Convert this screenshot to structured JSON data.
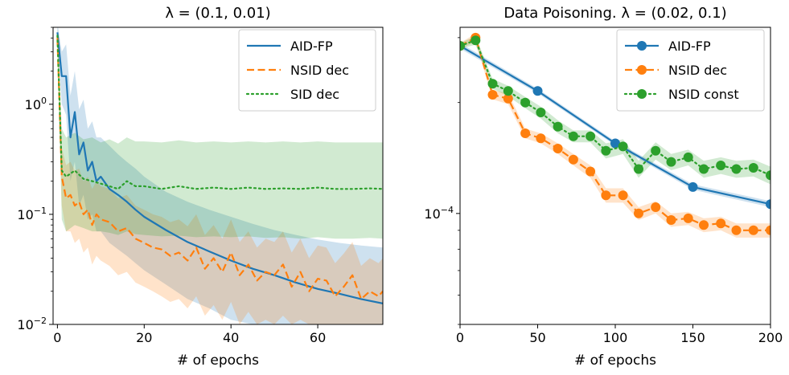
{
  "chart_data": [
    {
      "type": "line",
      "title": "λ = (0.1, 0.01)",
      "xlabel": "# of epochs",
      "ylabel": "",
      "xlim": [
        -1,
        75
      ],
      "ylim": [
        0.01,
        5.0
      ],
      "yscale": "log",
      "grid": false,
      "legend_position": "upper right",
      "xticks": [
        0,
        20,
        40,
        60
      ],
      "xtick_labels": [
        "0",
        "20",
        "40",
        "60"
      ],
      "yticks": [
        0.01,
        0.1,
        1
      ],
      "ytick_labels": [
        "10⁻²",
        "10⁻¹",
        "10⁰"
      ],
      "series": [
        {
          "name": "AID-FP",
          "style": "solid",
          "color": "#1f77b4",
          "x": [
            0,
            1,
            2,
            3,
            4,
            5,
            6,
            7,
            8,
            9,
            10,
            12,
            14,
            16,
            18,
            20,
            25,
            30,
            35,
            40,
            45,
            50,
            55,
            60,
            65,
            70,
            75
          ],
          "y": [
            4.5,
            1.8,
            1.8,
            0.5,
            0.85,
            0.35,
            0.45,
            0.25,
            0.3,
            0.2,
            0.22,
            0.17,
            0.15,
            0.13,
            0.11,
            0.095,
            0.072,
            0.056,
            0.046,
            0.038,
            0.032,
            0.028,
            0.024,
            0.021,
            0.019,
            0.017,
            0.0155
          ],
          "band_lower": [
            3.5,
            1.0,
            0.8,
            0.2,
            0.3,
            0.12,
            0.15,
            0.09,
            0.1,
            0.07,
            0.07,
            0.055,
            0.048,
            0.042,
            0.036,
            0.031,
            0.023,
            0.017,
            0.014,
            0.011,
            0.01,
            0.01,
            0.01,
            0.01,
            0.01,
            0.01,
            0.01
          ],
          "band_upper": [
            5.5,
            3.0,
            3.5,
            1.2,
            2.0,
            0.9,
            1.1,
            0.6,
            0.7,
            0.5,
            0.5,
            0.42,
            0.35,
            0.3,
            0.26,
            0.22,
            0.16,
            0.13,
            0.11,
            0.095,
            0.082,
            0.072,
            0.065,
            0.059,
            0.055,
            0.052,
            0.05
          ]
        },
        {
          "name": "NSID dec",
          "style": "dashed",
          "color": "#ff7f0e",
          "x": [
            0,
            1,
            2,
            3,
            4,
            5,
            6,
            7,
            8,
            9,
            10,
            12,
            14,
            16,
            18,
            20,
            22,
            24,
            26,
            28,
            30,
            32,
            34,
            36,
            38,
            40,
            42,
            44,
            46,
            48,
            50,
            52,
            54,
            56,
            58,
            60,
            62,
            64,
            66,
            68,
            70,
            72,
            74,
            75
          ],
          "y": [
            4.0,
            0.22,
            0.14,
            0.15,
            0.12,
            0.13,
            0.1,
            0.11,
            0.08,
            0.1,
            0.09,
            0.085,
            0.07,
            0.075,
            0.06,
            0.055,
            0.05,
            0.048,
            0.042,
            0.045,
            0.038,
            0.05,
            0.032,
            0.04,
            0.03,
            0.045,
            0.028,
            0.035,
            0.025,
            0.03,
            0.028,
            0.035,
            0.022,
            0.03,
            0.02,
            0.026,
            0.025,
            0.018,
            0.022,
            0.028,
            0.017,
            0.02,
            0.018,
            0.02
          ],
          "band_lower": [
            3.2,
            0.12,
            0.07,
            0.07,
            0.055,
            0.06,
            0.045,
            0.05,
            0.035,
            0.042,
            0.038,
            0.034,
            0.028,
            0.03,
            0.024,
            0.022,
            0.02,
            0.018,
            0.016,
            0.017,
            0.014,
            0.018,
            0.012,
            0.015,
            0.011,
            0.016,
            0.01,
            0.013,
            0.01,
            0.011,
            0.01,
            0.012,
            0.01,
            0.011,
            0.01,
            0.01,
            0.01,
            0.01,
            0.01,
            0.01,
            0.01,
            0.01,
            0.01,
            0.01
          ],
          "band_upper": [
            5.0,
            0.4,
            0.28,
            0.3,
            0.25,
            0.26,
            0.2,
            0.22,
            0.17,
            0.2,
            0.18,
            0.17,
            0.14,
            0.15,
            0.12,
            0.11,
            0.1,
            0.095,
            0.085,
            0.09,
            0.078,
            0.1,
            0.065,
            0.08,
            0.06,
            0.09,
            0.056,
            0.07,
            0.05,
            0.06,
            0.056,
            0.07,
            0.045,
            0.06,
            0.04,
            0.052,
            0.05,
            0.036,
            0.044,
            0.056,
            0.034,
            0.04,
            0.036,
            0.04
          ]
        },
        {
          "name": "SID dec",
          "style": "dotted",
          "color": "#2ca02c",
          "x": [
            0,
            1,
            2,
            4,
            6,
            8,
            10,
            12,
            14,
            16,
            18,
            20,
            24,
            28,
            32,
            36,
            40,
            44,
            48,
            52,
            56,
            60,
            64,
            68,
            72,
            75
          ],
          "y": [
            4.2,
            0.25,
            0.22,
            0.25,
            0.21,
            0.2,
            0.19,
            0.18,
            0.17,
            0.2,
            0.18,
            0.18,
            0.17,
            0.18,
            0.17,
            0.175,
            0.17,
            0.175,
            0.17,
            0.172,
            0.17,
            0.175,
            0.17,
            0.17,
            0.172,
            0.17
          ],
          "band_lower": [
            3.5,
            0.09,
            0.07,
            0.08,
            0.075,
            0.07,
            0.07,
            0.068,
            0.065,
            0.07,
            0.066,
            0.065,
            0.063,
            0.064,
            0.062,
            0.063,
            0.062,
            0.063,
            0.061,
            0.062,
            0.06,
            0.062,
            0.06,
            0.06,
            0.061,
            0.06
          ],
          "band_upper": [
            5.0,
            0.6,
            0.5,
            0.55,
            0.48,
            0.5,
            0.45,
            0.48,
            0.44,
            0.5,
            0.46,
            0.46,
            0.45,
            0.47,
            0.45,
            0.46,
            0.45,
            0.46,
            0.45,
            0.46,
            0.45,
            0.46,
            0.45,
            0.45,
            0.45,
            0.45
          ]
        }
      ]
    },
    {
      "type": "line",
      "title": "Data Poisoning. λ = (0.02, 0.1)",
      "xlabel": "# of epochs",
      "ylabel": "",
      "xlim": [
        0,
        200
      ],
      "ylim": [
        5e-05,
        0.00032
      ],
      "yscale": "log",
      "grid": false,
      "legend_position": "upper right",
      "xticks": [
        0,
        50,
        100,
        150,
        200
      ],
      "xtick_labels": [
        "0",
        "50",
        "100",
        "150",
        "200"
      ],
      "yticks": [
        0.0001
      ],
      "ytick_labels": [
        "10⁻⁴"
      ],
      "series": [
        {
          "name": "AID-FP",
          "style": "solid",
          "marker": "o",
          "color": "#1f77b4",
          "x": [
            0,
            50,
            100,
            150,
            200
          ],
          "y": [
            0.000285,
            0.000215,
            0.000155,
            0.000118,
            0.000106
          ],
          "band_lower": [
            0.00028,
            0.000212,
            0.000153,
            0.000116,
            0.000104
          ],
          "band_upper": [
            0.00029,
            0.000218,
            0.000157,
            0.00012,
            0.000108
          ]
        },
        {
          "name": "NSID dec",
          "style": "dashed",
          "marker": "o",
          "color": "#ff7f0e",
          "x": [
            0,
            10,
            21,
            31,
            42,
            52,
            63,
            73,
            84,
            94,
            105,
            115,
            126,
            136,
            147,
            157,
            168,
            178,
            189,
            200
          ],
          "y": [
            0.000285,
            0.0003,
            0.00021,
            0.000205,
            0.000165,
            0.00016,
            0.00015,
            0.00014,
            0.00013,
            0.000112,
            0.000112,
            0.0001,
            0.000104,
            9.6e-05,
            9.7e-05,
            9.3e-05,
            9.4e-05,
            9e-05,
            9e-05,
            9e-05
          ],
          "band_lower": [
            0.00028,
            0.000292,
            0.000204,
            0.000198,
            0.00016,
            0.000155,
            0.000145,
            0.000135,
            0.000125,
            0.000107,
            0.000107,
            9.6e-05,
            0.0001,
            9.2e-05,
            9.3e-05,
            8.9e-05,
            9e-05,
            8.6e-05,
            8.6e-05,
            8.6e-05
          ],
          "band_upper": [
            0.00029,
            0.000308,
            0.000216,
            0.000212,
            0.00017,
            0.000165,
            0.000155,
            0.000145,
            0.000135,
            0.000117,
            0.000117,
            0.000104,
            0.000108,
            0.0001,
            0.000101,
            9.7e-05,
            9.8e-05,
            9.4e-05,
            9.4e-05,
            9.4e-05
          ]
        },
        {
          "name": "NSID const",
          "style": "dotted",
          "marker": "o",
          "color": "#2ca02c",
          "x": [
            0,
            10,
            21,
            31,
            42,
            52,
            63,
            73,
            84,
            94,
            105,
            115,
            126,
            136,
            147,
            157,
            168,
            178,
            189,
            200
          ],
          "y": [
            0.000285,
            0.000295,
            0.000225,
            0.000215,
            0.0002,
            0.000188,
            0.000172,
            0.000162,
            0.000162,
            0.000148,
            0.000152,
            0.000132,
            0.000148,
            0.000138,
            0.000142,
            0.000132,
            0.000135,
            0.000132,
            0.000133,
            0.000127
          ],
          "band_lower": [
            0.00028,
            0.000287,
            0.000218,
            0.000208,
            0.000193,
            0.000181,
            0.000165,
            0.000156,
            0.000156,
            0.000141,
            0.000145,
            0.000125,
            0.00014,
            0.000131,
            0.000135,
            0.000125,
            0.000128,
            0.000125,
            0.000126,
            0.00012
          ],
          "band_upper": [
            0.00029,
            0.000303,
            0.000232,
            0.000222,
            0.000207,
            0.000195,
            0.000179,
            0.000168,
            0.000168,
            0.000155,
            0.000159,
            0.000139,
            0.000156,
            0.000145,
            0.000149,
            0.000139,
            0.000142,
            0.000139,
            0.00014,
            0.000134
          ]
        }
      ]
    }
  ]
}
